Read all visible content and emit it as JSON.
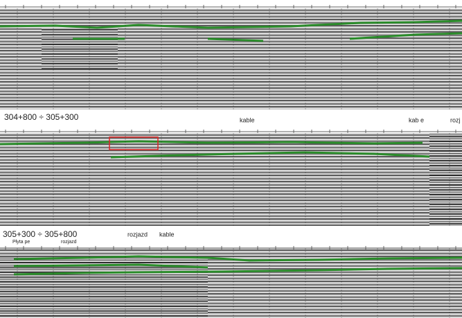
{
  "panel_2": {
    "title": "304+800 ÷ 305+300",
    "annotations": [
      "kable",
      "kab e",
      "rozj"
    ]
  },
  "panel_3": {
    "title": "305+300 ÷ 305+800",
    "annotations": [
      "rozjazd",
      "kable",
      "Płyta pe",
      "rozjazd"
    ]
  }
}
